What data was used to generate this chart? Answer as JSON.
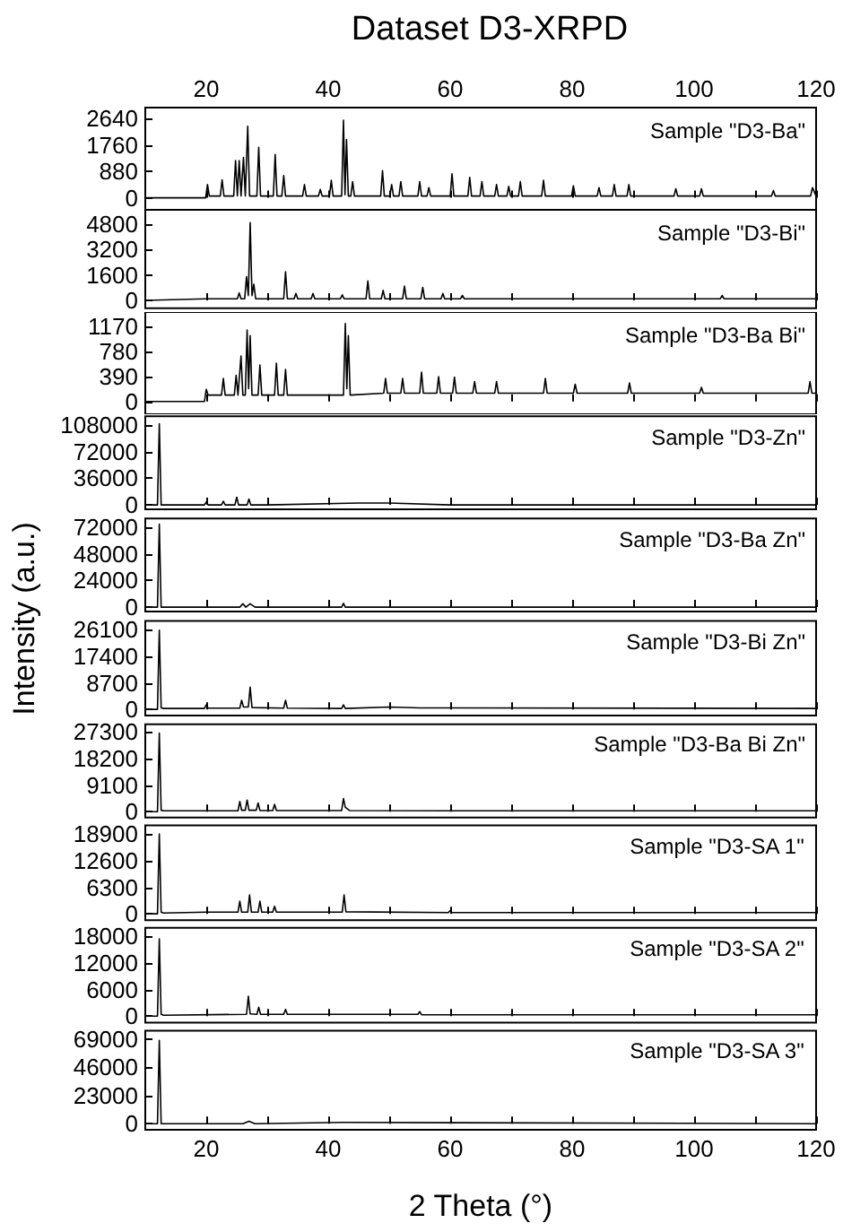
{
  "chart_data": [
    {
      "type": "line",
      "title": "Dataset D3-XRPD",
      "annotations": [
        "Sample \"D3-Ba\""
      ],
      "xlim": [
        10,
        120
      ],
      "xticks": [
        20,
        {
          "value": 30,
          "label": null
        },
        40,
        {
          "value": 50,
          "label": null
        },
        60,
        {
          "value": 70,
          "label": null
        },
        80,
        {
          "value": 90,
          "label": null
        },
        100,
        {
          "value": 110,
          "label": null
        },
        120
      ],
      "x2lim": [
        10,
        120
      ],
      "x2ticks": [
        20,
        40,
        60,
        80,
        100,
        120
      ],
      "tick_labels": "y",
      "ylim": [
        -400,
        3000
      ],
      "yticks": [
        0,
        880,
        1760,
        2640
      ],
      "series": [
        {
          "color": "#000000",
          "x": [
            10,
            19.9,
            20.2,
            20.5,
            22.3,
            22.6,
            22.9,
            24.5,
            24.8,
            25.1,
            25.4,
            25.7,
            26.1,
            26.4,
            26.8,
            27.1,
            28.3,
            28.6,
            28.9,
            31.0,
            31.3,
            31.6,
            32.4,
            32.7,
            33.0,
            35.8,
            36.1,
            36.4,
            38.4,
            38.7,
            39.0,
            40.2,
            40.5,
            40.8,
            42.2,
            42.5,
            42.75,
            43.0,
            43.3,
            43.7,
            44.0,
            44.3,
            48.6,
            48.9,
            49.2,
            50.1,
            50.4,
            50.7,
            51.6,
            51.9,
            52.2,
            54.7,
            55.0,
            55.3,
            56.2,
            56.5,
            56.8,
            60.0,
            60.3,
            60.6,
            62.9,
            63.2,
            63.5,
            64.9,
            65.2,
            65.5,
            67.3,
            67.6,
            67.9,
            69.3,
            69.6,
            69.9,
            71.2,
            71.5,
            71.8,
            75.0,
            75.3,
            75.6,
            79.9,
            80.2,
            80.5,
            84.1,
            84.4,
            84.7,
            86.6,
            86.9,
            87.2,
            89.0,
            89.3,
            89.6,
            96.7,
            97.0,
            97.3,
            100.9,
            101.2,
            101.5,
            112.7,
            113.0,
            113.3,
            119.1,
            119.4,
            120
          ],
          "values": [
            0,
            0,
            440,
            60,
            60,
            600,
            60,
            60,
            1240,
            60,
            1240,
            60,
            1340,
            60,
            2380,
            60,
            60,
            1680,
            60,
            60,
            1440,
            60,
            60,
            740,
            60,
            60,
            440,
            60,
            60,
            280,
            60,
            60,
            580,
            60,
            60,
            2580,
            100,
            1940,
            60,
            60,
            540,
            60,
            60,
            900,
            60,
            60,
            440,
            60,
            60,
            540,
            60,
            60,
            540,
            60,
            60,
            340,
            60,
            60,
            800,
            60,
            60,
            680,
            60,
            60,
            540,
            60,
            60,
            440,
            60,
            60,
            380,
            60,
            60,
            540,
            60,
            60,
            580,
            60,
            60,
            400,
            60,
            60,
            340,
            60,
            60,
            440,
            60,
            60,
            440,
            60,
            60,
            300,
            60,
            60,
            300,
            60,
            60,
            240,
            60,
            60,
            340,
            60
          ]
        }
      ]
    },
    {
      "type": "line",
      "annotations": [
        "Sample \"D3-Bi\""
      ],
      "xlim": [
        10,
        120
      ],
      "xticks": [
        20,
        {
          "value": 30,
          "label": null
        },
        40,
        {
          "value": 50,
          "label": null
        },
        60,
        {
          "value": 70,
          "label": null
        },
        80,
        {
          "value": 90,
          "label": null
        },
        100,
        {
          "value": 110,
          "label": null
        },
        120
      ],
      "tick_labels": "y",
      "ylim": [
        -500,
        5700
      ],
      "yticks": [
        0,
        1600,
        3200,
        4800
      ],
      "series": [
        {
          "color": "#000000",
          "x": [
            10,
            20,
            25.1,
            25.4,
            25.7,
            26.3,
            26.6,
            26.9,
            27.2,
            27.5,
            27.8,
            28.1,
            32.7,
            33.0,
            33.3,
            34.4,
            34.7,
            35.0,
            37.2,
            37.5,
            37.8,
            42.0,
            42.3,
            42.6,
            46.2,
            46.5,
            46.8,
            48.7,
            49.0,
            49.3,
            52.2,
            52.5,
            52.8,
            55.2,
            55.5,
            55.8,
            58.5,
            58.8,
            59.1,
            61.7,
            62.0,
            62.3,
            104.3,
            104.6,
            104.9,
            120
          ],
          "values": [
            0,
            100,
            100,
            470,
            100,
            100,
            1490,
            300,
            4900,
            300,
            1020,
            100,
            100,
            1800,
            100,
            100,
            430,
            100,
            100,
            430,
            100,
            100,
            350,
            100,
            100,
            1220,
            100,
            100,
            630,
            100,
            100,
            900,
            100,
            100,
            820,
            100,
            100,
            430,
            100,
            100,
            310,
            100,
            100,
            310,
            100,
            100
          ]
        }
      ]
    },
    {
      "type": "line",
      "annotations": [
        "Sample \"D3-Ba Bi\""
      ],
      "xlim": [
        10,
        120
      ],
      "xticks": [
        20,
        {
          "value": 30,
          "label": null
        },
        40,
        {
          "value": 50,
          "label": null
        },
        60,
        {
          "value": 70,
          "label": null
        },
        80,
        {
          "value": 90,
          "label": null
        },
        100,
        {
          "value": 110,
          "label": null
        },
        120
      ],
      "tick_labels": "y",
      "ylim": [
        -200,
        1400
      ],
      "yticks": [
        0,
        390,
        780,
        1170
      ],
      "series": [
        {
          "color": "#000000",
          "x": [
            10,
            19.7,
            20.0,
            20.3,
            22.5,
            22.8,
            23.1,
            24.6,
            24.9,
            25.2,
            25.4,
            25.7,
            26.0,
            26.4,
            26.7,
            26.95,
            27.2,
            27.5,
            28.5,
            28.8,
            29.1,
            31.2,
            31.5,
            31.8,
            32.7,
            33.0,
            33.3,
            42.5,
            42.8,
            43.05,
            43.3,
            43.6,
            49.1,
            49.4,
            49.7,
            51.9,
            52.2,
            52.5,
            55.0,
            55.3,
            55.6,
            57.8,
            58.1,
            58.4,
            60.4,
            60.7,
            61.0,
            63.7,
            64.0,
            64.3,
            67.3,
            67.6,
            67.9,
            75.3,
            75.6,
            75.9,
            80.2,
            80.5,
            80.8,
            89.1,
            89.4,
            89.7,
            100.9,
            101.2,
            101.5,
            118.7,
            119.0,
            119.3,
            120
          ],
          "values": [
            0,
            0,
            190,
            100,
            100,
            360,
            100,
            100,
            410,
            100,
            100,
            710,
            100,
            100,
            1120,
            200,
            1030,
            100,
            100,
            570,
            100,
            100,
            600,
            100,
            100,
            500,
            100,
            100,
            1220,
            200,
            1030,
            100,
            130,
            360,
            130,
            130,
            360,
            130,
            130,
            460,
            130,
            130,
            390,
            130,
            130,
            380,
            130,
            130,
            310,
            130,
            130,
            310,
            130,
            130,
            360,
            130,
            130,
            270,
            130,
            130,
            290,
            130,
            130,
            220,
            130,
            130,
            310,
            130,
            130
          ]
        }
      ]
    },
    {
      "type": "line",
      "annotations": [
        "Sample \"D3-Zn\""
      ],
      "xlim": [
        10,
        120
      ],
      "xticks": [
        20,
        {
          "value": 30,
          "label": null
        },
        40,
        {
          "value": 50,
          "label": null
        },
        60,
        {
          "value": 70,
          "label": null
        },
        80,
        {
          "value": 90,
          "label": null
        },
        100,
        {
          "value": 110,
          "label": null
        },
        120
      ],
      "tick_labels": "y",
      "ylim": [
        -6000,
        120000
      ],
      "yticks": [
        0,
        36000,
        72000,
        108000
      ],
      "series": [
        {
          "color": "#000000",
          "x": [
            10,
            12.0,
            12.3,
            12.6,
            13.0,
            19.7,
            20.0,
            20.3,
            22.5,
            22.8,
            23.1,
            24.7,
            25.0,
            25.3,
            26.7,
            27.0,
            27.3,
            30.0,
            45,
            50,
            60,
            120
          ],
          "values": [
            0,
            0,
            110000,
            0,
            0,
            0,
            4000,
            0,
            0,
            5000,
            0,
            0,
            10500,
            0,
            0,
            8000,
            0,
            0,
            2500,
            2500,
            0,
            0
          ]
        }
      ]
    },
    {
      "type": "line",
      "annotations": [
        "Sample \"D3-Ba Zn\""
      ],
      "xlim": [
        10,
        120
      ],
      "xticks": [
        20,
        {
          "value": 30,
          "label": null
        },
        40,
        {
          "value": 50,
          "label": null
        },
        60,
        {
          "value": 70,
          "label": null
        },
        80,
        {
          "value": 90,
          "label": null
        },
        100,
        {
          "value": 110,
          "label": null
        },
        120
      ],
      "tick_labels": "y",
      "ylim": [
        -4000,
        80000
      ],
      "yticks": [
        0,
        24000,
        48000,
        72000
      ],
      "series": [
        {
          "color": "#000000",
          "x": [
            10,
            12.0,
            12.3,
            12.6,
            13.0,
            25.5,
            26.0,
            26.5,
            27.2,
            28,
            42.2,
            42.5,
            42.8,
            60,
            120
          ],
          "values": [
            0,
            0,
            75000,
            0,
            0,
            0,
            3000,
            0,
            3000,
            0,
            0,
            3500,
            0,
            0,
            0
          ]
        }
      ]
    },
    {
      "type": "line",
      "ylabel": "Intensity (a.u.)",
      "annotations": [
        "Sample \"D3-Bi Zn\""
      ],
      "xlim": [
        10,
        120
      ],
      "xticks": [
        20,
        {
          "value": 30,
          "label": null
        },
        40,
        {
          "value": 50,
          "label": null
        },
        60,
        {
          "value": 70,
          "label": null
        },
        80,
        {
          "value": 90,
          "label": null
        },
        100,
        {
          "value": 110,
          "label": null
        },
        120
      ],
      "tick_labels": "y",
      "ylim": [
        -2000,
        29000
      ],
      "yticks": [
        0,
        8700,
        17400,
        26100
      ],
      "series": [
        {
          "color": "#000000",
          "x": [
            10,
            12.0,
            12.3,
            12.6,
            13.0,
            19.7,
            20.0,
            20.3,
            25.5,
            25.8,
            26.1,
            26.9,
            27.2,
            27.5,
            32.7,
            33.0,
            33.3,
            42.2,
            42.5,
            42.8,
            50,
            55,
            120
          ],
          "values": [
            0,
            0,
            26000,
            500,
            300,
            300,
            1500,
            400,
            400,
            3000,
            800,
            800,
            7300,
            600,
            400,
            3000,
            400,
            300,
            1500,
            300,
            800,
            500,
            300
          ]
        }
      ]
    },
    {
      "type": "line",
      "annotations": [
        "Sample \"D3-Ba Bi Zn\""
      ],
      "xlim": [
        10,
        120
      ],
      "xticks": [
        20,
        {
          "value": 30,
          "label": null
        },
        40,
        {
          "value": 50,
          "label": null
        },
        60,
        {
          "value": 70,
          "label": null
        },
        80,
        {
          "value": 90,
          "label": null
        },
        100,
        {
          "value": 110,
          "label": null
        },
        120
      ],
      "tick_labels": "y",
      "ylim": [
        -2000,
        30000
      ],
      "yticks": [
        0,
        9100,
        18200,
        27300
      ],
      "series": [
        {
          "color": "#000000",
          "x": [
            10,
            12.0,
            12.3,
            12.6,
            13.0,
            25.2,
            25.5,
            25.8,
            26.4,
            26.7,
            27.0,
            28.2,
            28.5,
            28.8,
            30.9,
            31.2,
            31.5,
            42.2,
            42.5,
            42.8,
            43.5,
            60,
            120
          ],
          "values": [
            0,
            0,
            27000,
            500,
            300,
            300,
            3500,
            500,
            500,
            4000,
            500,
            500,
            3000,
            400,
            400,
            2500,
            400,
            400,
            4500,
            1500,
            400,
            300,
            300
          ]
        }
      ]
    },
    {
      "type": "line",
      "annotations": [
        "Sample \"D3-SA 1\""
      ],
      "xlim": [
        10,
        120
      ],
      "xticks": [
        20,
        {
          "value": 30,
          "label": null
        },
        40,
        {
          "value": 50,
          "label": null
        },
        60,
        {
          "value": 70,
          "label": null
        },
        80,
        {
          "value": 90,
          "label": null
        },
        100,
        {
          "value": 110,
          "label": null
        },
        120
      ],
      "tick_labels": "y",
      "ylim": [
        -1500,
        21000
      ],
      "yticks": [
        0,
        6300,
        12600,
        18900
      ],
      "series": [
        {
          "color": "#000000",
          "x": [
            10,
            12.0,
            12.3,
            12.6,
            13.0,
            20,
            25.2,
            25.5,
            25.8,
            26.8,
            27.1,
            27.4,
            28.5,
            28.8,
            29.1,
            30.9,
            31.2,
            31.5,
            42.3,
            42.6,
            42.9,
            59.7,
            60.0,
            60.3,
            120
          ],
          "values": [
            0,
            0,
            19000,
            400,
            200,
            400,
            400,
            3000,
            400,
            400,
            4500,
            400,
            400,
            3000,
            400,
            400,
            1800,
            400,
            400,
            4500,
            500,
            300,
            800,
            300,
            300
          ]
        }
      ]
    },
    {
      "type": "line",
      "annotations": [
        "Sample \"D3-SA 2\""
      ],
      "xlim": [
        10,
        120
      ],
      "xticks": [
        20,
        {
          "value": 30,
          "label": null
        },
        40,
        {
          "value": 50,
          "label": null
        },
        60,
        {
          "value": 70,
          "label": null
        },
        80,
        {
          "value": 90,
          "label": null
        },
        100,
        {
          "value": 110,
          "label": null
        },
        120
      ],
      "tick_labels": "y",
      "ylim": [
        -1500,
        20000
      ],
      "yticks": [
        0,
        6000,
        12000,
        18000
      ],
      "series": [
        {
          "color": "#000000",
          "x": [
            10,
            12.0,
            12.3,
            12.6,
            13.0,
            26.6,
            26.9,
            27.2,
            28.3,
            28.6,
            28.9,
            32.7,
            33.0,
            33.3,
            54.7,
            55.0,
            55.3,
            120
          ],
          "values": [
            0,
            0,
            17500,
            400,
            200,
            400,
            4500,
            500,
            400,
            2000,
            400,
            400,
            1500,
            400,
            400,
            1000,
            300,
            300
          ]
        }
      ]
    },
    {
      "type": "line",
      "xlabel": "2 Theta (°)",
      "annotations": [
        "Sample \"D3-SA 3\""
      ],
      "xlim": [
        10,
        120
      ],
      "xticks": [
        20,
        {
          "value": 30,
          "label": null
        },
        40,
        {
          "value": 50,
          "label": null
        },
        60,
        {
          "value": 70,
          "label": null
        },
        80,
        {
          "value": 90,
          "label": null
        },
        100,
        {
          "value": 110,
          "label": null
        },
        120
      ],
      "ylim": [
        -5000,
        76000
      ],
      "yticks": [
        0,
        23000,
        46000,
        69000
      ],
      "series": [
        {
          "color": "#000000",
          "x": [
            10,
            12.0,
            12.3,
            12.6,
            13.0,
            26.0,
            27.0,
            28.0,
            42.5,
            120
          ],
          "values": [
            0,
            0,
            68000,
            0,
            0,
            0,
            2000,
            0,
            1000,
            0
          ]
        }
      ]
    }
  ]
}
